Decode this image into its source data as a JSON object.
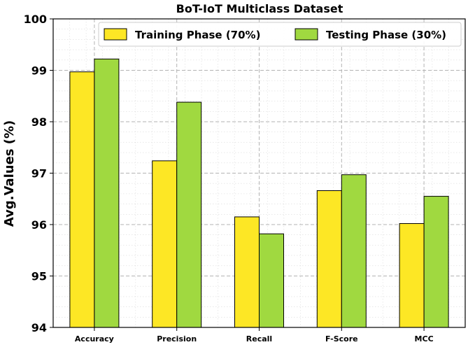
{
  "chart_data": {
    "type": "bar",
    "title": "BoT-IoT Multiclass Dataset",
    "xlabel": "",
    "ylabel": "Avg.Values (%)",
    "ylim": [
      94,
      100
    ],
    "yticks": [
      94,
      95,
      96,
      97,
      98,
      99,
      100
    ],
    "grid": true,
    "legend_position": "top",
    "categories": [
      "Accuracy",
      "Precision",
      "Recall",
      "F-Score",
      "MCC"
    ],
    "series": [
      {
        "name": "Training Phase (70%)",
        "color": "#fde725",
        "values": [
          98.97,
          97.24,
          96.15,
          96.66,
          96.02
        ]
      },
      {
        "name": "Testing Phase (30%)",
        "color": "#a0d940",
        "values": [
          99.22,
          98.38,
          95.82,
          96.97,
          96.55
        ]
      }
    ]
  }
}
